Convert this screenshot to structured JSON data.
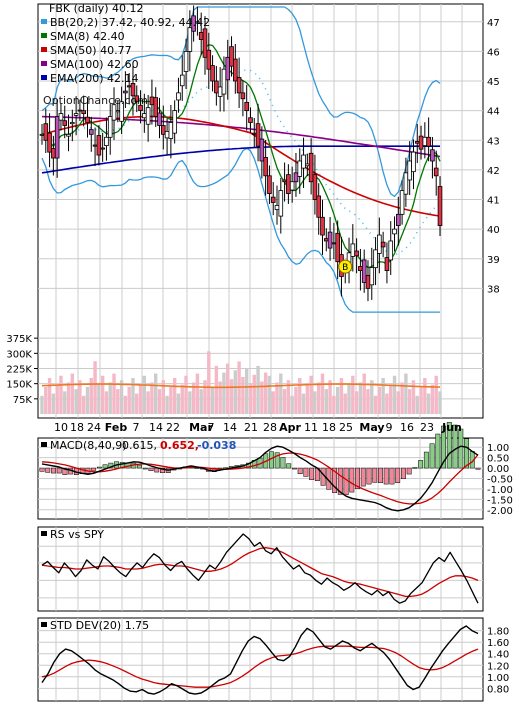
{
  "chart_data": [
    {
      "panel": "price",
      "type": "candlestick",
      "legend": [
        {
          "label": "FBK (daily) 40.12",
          "color": "#000000"
        },
        {
          "label": "BB(20,2) 37.42, 40.92, 44.42",
          "color": "#3399dd"
        },
        {
          "label": "SMA(8) 42.40",
          "color": "#007700"
        },
        {
          "label": "SMA(50) 40.77",
          "color": "#cc0000"
        },
        {
          "label": "SMA(100) 42.60",
          "color": "#880088"
        },
        {
          "label": "EMA(200) 42.14",
          "color": "#0000aa"
        }
      ],
      "watermark": "OptionChance.com",
      "marker": "B",
      "x_tick_labels": [
        "10",
        "18",
        "24",
        "Feb",
        "7",
        "14",
        "22",
        "Mar",
        "7",
        "14",
        "21",
        "28",
        "Apr",
        "11",
        "18",
        "25",
        "May",
        "9",
        "16",
        "23",
        "Jun"
      ],
      "y_ticks": [
        38,
        39,
        40,
        41,
        42,
        43,
        44,
        45,
        46,
        47
      ],
      "ylim": [
        37,
        47.6
      ],
      "close_series": [
        43.2,
        43.0,
        42.6,
        42.4,
        43.8,
        43.9,
        43.5,
        43.2,
        43.6,
        43.9,
        44.0,
        43.9,
        43.6,
        43.2,
        42.8,
        42.5,
        42.7,
        43.1,
        43.8,
        44.2,
        44.0,
        44.3,
        44.6,
        44.8,
        44.5,
        44.3,
        44.0,
        43.9,
        44.1,
        44.2,
        43.8,
        43.5,
        43.2,
        43.3,
        43.6,
        44.0,
        44.6,
        45.2,
        46.0,
        46.8,
        47.2,
        47.0,
        46.4,
        45.8,
        45.4,
        45.0,
        44.6,
        44.8,
        45.4,
        45.8,
        45.5,
        45.0,
        44.6,
        44.4,
        44.0,
        43.6,
        43.2,
        42.8,
        42.3,
        41.8,
        41.2,
        40.9,
        40.8,
        41.3,
        41.6,
        41.2,
        41.6,
        41.9,
        42.3,
        42.5,
        42.2,
        41.6,
        41.0,
        40.4,
        39.8,
        39.6,
        39.9,
        39.5,
        38.9,
        38.4,
        38.6,
        39.2,
        39.5,
        39.1,
        38.6,
        38.2,
        38.0,
        38.7,
        39.3,
        39.8,
        39.4,
        38.6,
        39.6,
        40.0,
        40.5,
        41.3,
        41.9,
        42.3,
        42.6,
        42.9,
        42.7,
        43.1,
        42.8,
        42.3,
        41.8,
        40.12
      ],
      "volume_y_ticks": [
        "375K",
        "300K",
        "225K",
        "150K",
        "75K"
      ],
      "volume_max": 450000
    },
    {
      "panel": "macd",
      "type": "line",
      "label": "MACD(8,40,9)",
      "values_text": [
        "0.615,",
        "0.652,",
        "-0.038"
      ],
      "values_colors": [
        "#000000",
        "#cc0000",
        "#2255bb"
      ],
      "y_ticks": [
        "1.00",
        "0.50",
        "0.00",
        "-0.50",
        "-1.00",
        "-1.50",
        "-2.00"
      ],
      "ylim": [
        -2.25,
        1.25
      ],
      "series": [
        {
          "values": [
            0.2,
            0.15,
            0.1,
            0.05,
            -0.05,
            -0.1,
            -0.2,
            -0.25,
            -0.3,
            -0.25,
            -0.15,
            -0.05,
            0.05,
            0.15,
            0.2,
            0.25,
            0.3,
            0.28,
            0.2,
            0.1,
            0.02,
            -0.05,
            -0.1,
            -0.05,
            0.0,
            0.05,
            0.1,
            0.05,
            0.0,
            -0.1,
            -0.15,
            -0.1,
            -0.05,
            0.0,
            0.05,
            0.1,
            0.2,
            0.35,
            0.5,
            0.75,
            0.95,
            1.05,
            1.0,
            0.85,
            0.7,
            0.5,
            0.35,
            0.15,
            0.0,
            -0.3,
            -0.6,
            -0.9,
            -1.15,
            -1.35,
            -1.45,
            -1.5,
            -1.55,
            -1.6,
            -1.65,
            -1.75,
            -1.9,
            -2.0,
            -2.05,
            -2.0,
            -1.9,
            -1.7,
            -1.45,
            -1.1,
            -0.7,
            -0.2,
            0.3,
            0.7,
            0.9,
            1.05,
            1.0,
            0.8,
            0.615
          ]
        },
        {
          "values": [
            0.3,
            0.28,
            0.25,
            0.2,
            0.15,
            0.08,
            0.0,
            -0.08,
            -0.14,
            -0.18,
            -0.18,
            -0.15,
            -0.1,
            -0.04,
            0.03,
            0.09,
            0.15,
            0.19,
            0.2,
            0.18,
            0.14,
            0.09,
            0.04,
            0.01,
            0.0,
            0.01,
            0.03,
            0.04,
            0.03,
            0.0,
            -0.04,
            -0.06,
            -0.06,
            -0.05,
            -0.03,
            0.0,
            0.05,
            0.12,
            0.2,
            0.32,
            0.46,
            0.59,
            0.68,
            0.72,
            0.72,
            0.67,
            0.6,
            0.5,
            0.38,
            0.22,
            0.04,
            -0.16,
            -0.36,
            -0.55,
            -0.73,
            -0.88,
            -1.01,
            -1.12,
            -1.22,
            -1.31,
            -1.42,
            -1.52,
            -1.61,
            -1.68,
            -1.72,
            -1.72,
            -1.68,
            -1.58,
            -1.43,
            -1.22,
            -0.96,
            -0.67,
            -0.39,
            -0.12,
            0.12,
            0.3,
            0.652
          ]
        }
      ]
    },
    {
      "panel": "rs",
      "type": "line",
      "label": "RS vs SPY",
      "ylim": [
        0,
        1
      ],
      "series": [
        {
          "values": [
            0.55,
            0.6,
            0.52,
            0.45,
            0.58,
            0.5,
            0.4,
            0.48,
            0.62,
            0.55,
            0.5,
            0.66,
            0.6,
            0.52,
            0.45,
            0.4,
            0.5,
            0.58,
            0.52,
            0.62,
            0.7,
            0.65,
            0.55,
            0.48,
            0.56,
            0.6,
            0.5,
            0.42,
            0.35,
            0.45,
            0.55,
            0.5,
            0.6,
            0.72,
            0.8,
            0.88,
            0.96,
            0.9,
            0.8,
            0.85,
            0.74,
            0.7,
            0.78,
            0.66,
            0.58,
            0.5,
            0.55,
            0.45,
            0.42,
            0.35,
            0.3,
            0.38,
            0.32,
            0.28,
            0.22,
            0.26,
            0.32,
            0.25,
            0.2,
            0.16,
            0.22,
            0.15,
            0.2,
            0.1,
            0.05,
            0.08,
            0.18,
            0.25,
            0.32,
            0.45,
            0.58,
            0.65,
            0.6,
            0.72,
            0.6,
            0.48,
            0.35,
            0.2,
            0.05
          ]
        },
        {
          "values": [
            0.55,
            0.54,
            0.53,
            0.52,
            0.52,
            0.51,
            0.5,
            0.5,
            0.51,
            0.52,
            0.53,
            0.54,
            0.54,
            0.53,
            0.52,
            0.5,
            0.5,
            0.5,
            0.51,
            0.53,
            0.55,
            0.56,
            0.56,
            0.55,
            0.54,
            0.54,
            0.53,
            0.51,
            0.49,
            0.47,
            0.47,
            0.48,
            0.5,
            0.53,
            0.57,
            0.62,
            0.67,
            0.71,
            0.74,
            0.77,
            0.78,
            0.77,
            0.75,
            0.72,
            0.68,
            0.64,
            0.6,
            0.56,
            0.52,
            0.48,
            0.44,
            0.42,
            0.4,
            0.37,
            0.34,
            0.32,
            0.31,
            0.3,
            0.28,
            0.26,
            0.24,
            0.22,
            0.2,
            0.18,
            0.16,
            0.14,
            0.14,
            0.15,
            0.17,
            0.21,
            0.26,
            0.31,
            0.35,
            0.39,
            0.41,
            0.41,
            0.4,
            0.38,
            0.35
          ]
        }
      ]
    },
    {
      "panel": "stddev",
      "type": "line",
      "label": "STD DEV(20) 1.75",
      "y_ticks": [
        "1.80",
        "1.60",
        "1.40",
        "1.20",
        "1.00",
        "0.80"
      ],
      "ylim": [
        0.65,
        1.95
      ],
      "series": [
        {
          "values": [
            0.9,
            1.05,
            1.25,
            1.4,
            1.48,
            1.45,
            1.38,
            1.3,
            1.22,
            1.12,
            1.05,
            1.0,
            0.95,
            0.88,
            0.8,
            0.75,
            0.74,
            0.78,
            0.72,
            0.7,
            0.74,
            0.8,
            0.88,
            0.84,
            0.78,
            0.72,
            0.7,
            0.72,
            0.78,
            0.86,
            0.94,
            0.98,
            1.05,
            1.25,
            1.45,
            1.62,
            1.7,
            1.66,
            1.55,
            1.42,
            1.3,
            1.28,
            1.35,
            1.52,
            1.72,
            1.84,
            1.78,
            1.65,
            1.52,
            1.48,
            1.55,
            1.62,
            1.58,
            1.5,
            1.45,
            1.52,
            1.58,
            1.5,
            1.42,
            1.3,
            1.15,
            1.0,
            0.85,
            0.78,
            0.82,
            0.98,
            1.15,
            1.3,
            1.45,
            1.58,
            1.7,
            1.82,
            1.88,
            1.8,
            1.75
          ]
        },
        {
          "values": [
            1.0,
            1.02,
            1.06,
            1.12,
            1.18,
            1.23,
            1.26,
            1.28,
            1.29,
            1.28,
            1.26,
            1.23,
            1.19,
            1.15,
            1.1,
            1.05,
            1.0,
            0.96,
            0.93,
            0.9,
            0.88,
            0.87,
            0.86,
            0.85,
            0.84,
            0.83,
            0.82,
            0.82,
            0.82,
            0.83,
            0.85,
            0.87,
            0.9,
            0.95,
            1.01,
            1.08,
            1.16,
            1.23,
            1.29,
            1.33,
            1.36,
            1.37,
            1.38,
            1.4,
            1.43,
            1.47,
            1.5,
            1.52,
            1.53,
            1.53,
            1.53,
            1.53,
            1.53,
            1.52,
            1.51,
            1.51,
            1.51,
            1.5,
            1.49,
            1.46,
            1.42,
            1.36,
            1.29,
            1.22,
            1.16,
            1.13,
            1.12,
            1.13,
            1.16,
            1.21,
            1.27,
            1.33,
            1.39,
            1.44,
            1.48
          ]
        }
      ]
    }
  ]
}
